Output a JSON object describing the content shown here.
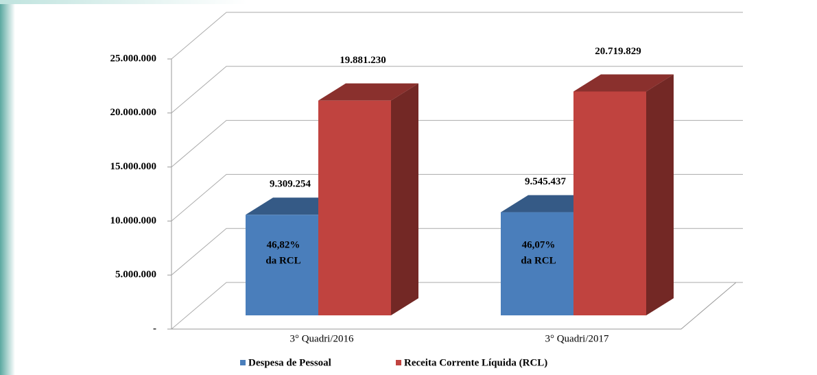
{
  "chart_data": {
    "type": "bar3d",
    "categories": [
      "3° Quadri/2016",
      "3° Quadri/2017"
    ],
    "series": [
      {
        "name": "Despesa de Pessoal",
        "color": "#4a7ebb",
        "values": [
          9309254,
          9545437
        ],
        "value_labels": [
          "9.309.254",
          "9.545.437"
        ]
      },
      {
        "name": "Receita Corrente Líquida (RCL)",
        "color": "#c0433f",
        "values": [
          19881230,
          20719829
        ],
        "value_labels": [
          "19.881.230",
          "20.719.829"
        ]
      }
    ],
    "annotations": [
      [
        "46,82%",
        "da RCL"
      ],
      [
        "46,07%",
        "da RCL"
      ]
    ],
    "ylim": [
      0,
      25000000
    ],
    "yticks": [
      {
        "value": 0,
        "label": "-"
      },
      {
        "value": 5000000,
        "label": "5.000.000"
      },
      {
        "value": 10000000,
        "label": "10.000.000"
      },
      {
        "value": 15000000,
        "label": "15.000.000"
      },
      {
        "value": 20000000,
        "label": "20.000.000"
      },
      {
        "value": 25000000,
        "label": "25.000.000"
      }
    ],
    "grid": true,
    "legend": "bottom"
  }
}
